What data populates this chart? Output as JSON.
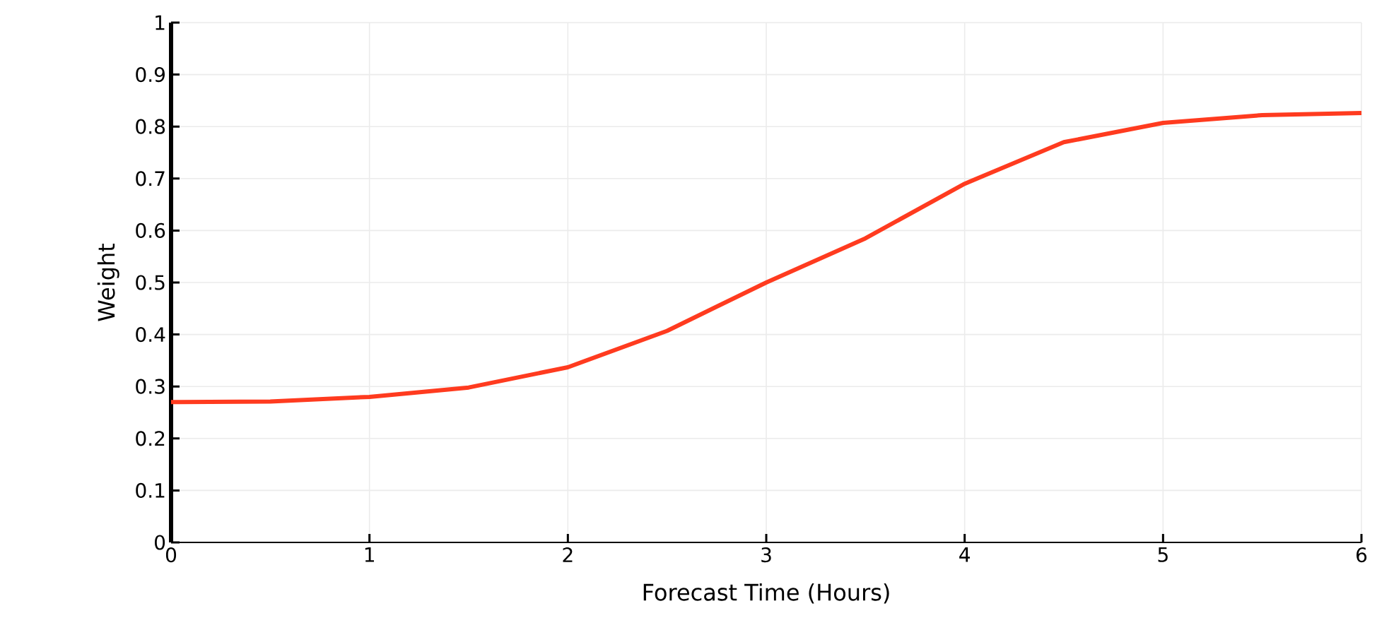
{
  "chart_data": {
    "type": "line",
    "xlabel": "Forecast Time (Hours)",
    "ylabel": "Weight",
    "x": [
      0,
      0.5,
      1,
      1.5,
      2,
      2.5,
      3,
      3.5,
      4,
      4.5,
      5,
      5.5,
      6
    ],
    "series": [
      {
        "color": "#ff3b1f",
        "values": [
          0.27,
          0.271,
          0.28,
          0.298,
          0.337,
          0.407,
          0.5,
          0.585,
          0.69,
          0.77,
          0.807,
          0.822,
          0.826
        ]
      }
    ],
    "xlim": [
      0,
      6
    ],
    "ylim": [
      0,
      1
    ],
    "xticks": [
      0,
      1,
      2,
      3,
      4,
      5,
      6
    ],
    "yticks": [
      0,
      0.1,
      0.2,
      0.3,
      0.4,
      0.5,
      0.6,
      0.7,
      0.8,
      0.9,
      1
    ],
    "grid": true,
    "line_style": "solid"
  }
}
